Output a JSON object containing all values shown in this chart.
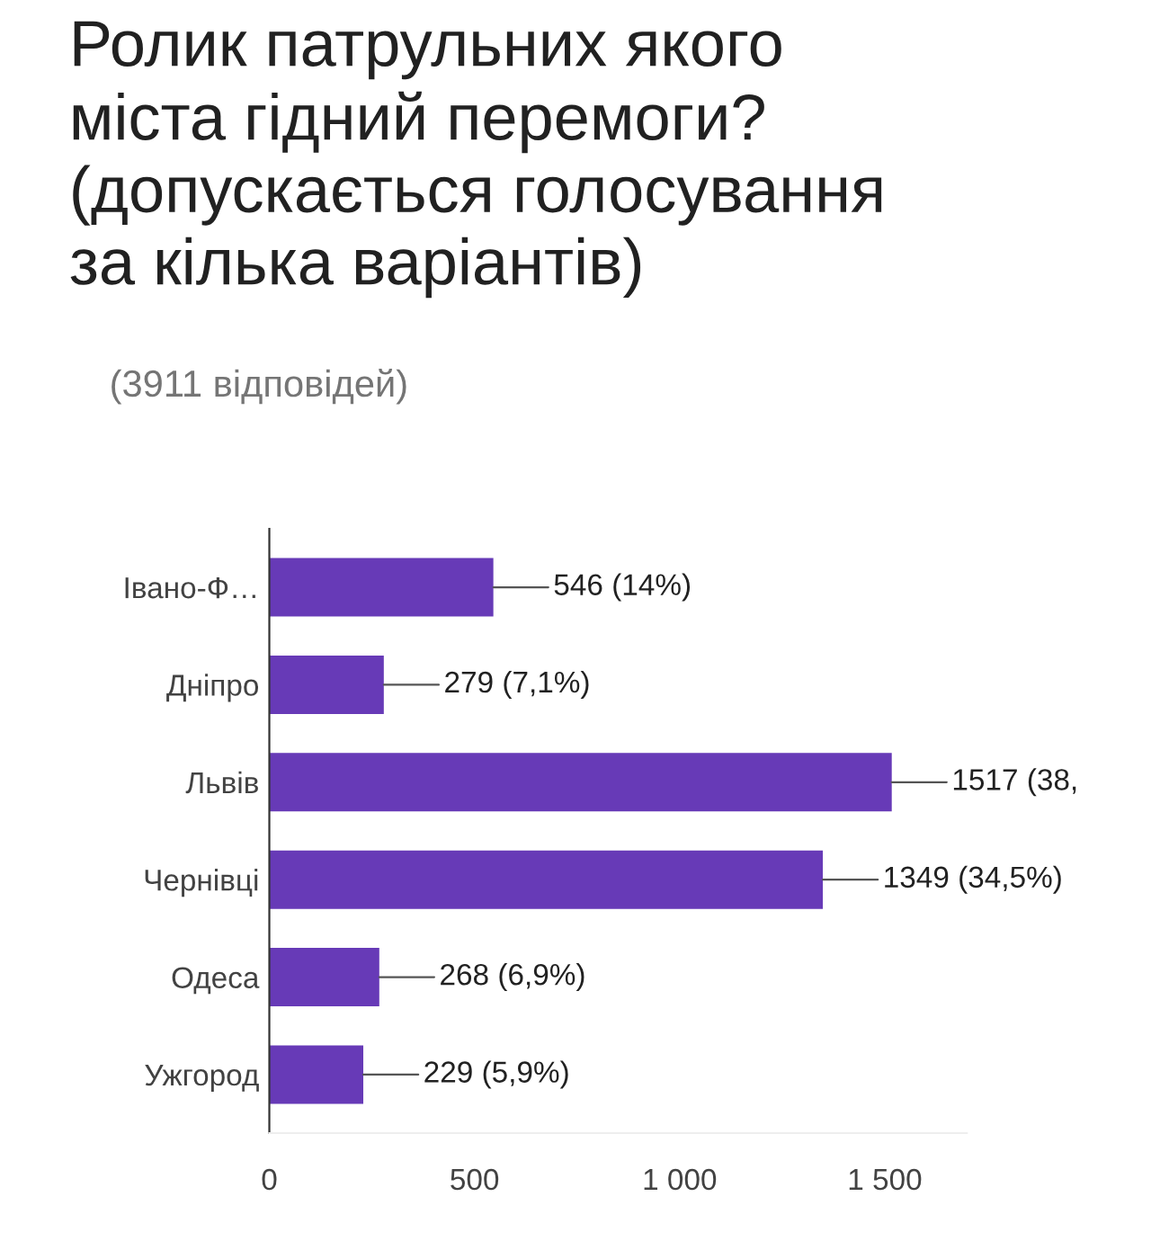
{
  "chart_data": {
    "type": "bar",
    "orientation": "horizontal",
    "title": "Ролик патрульних якого\nміста гідний перемоги?\n(допускається голосування\nза кілька варіантів)",
    "subtitle": "(3911 відповідей)",
    "categories": [
      "Івано-Ф…",
      "Дніпро",
      "Львів",
      "Чернівці",
      "Одеса",
      "Ужгород"
    ],
    "values": [
      546,
      279,
      1517,
      1349,
      268,
      229
    ],
    "value_labels": [
      "546 (14%)",
      "279 (7,1%)",
      "1517 (38,",
      "1349 (34,5%)",
      "268 (6,9%)",
      "229 (5,9%)"
    ],
    "color": "#673ab7",
    "xlim": [
      0,
      1700
    ],
    "xticks": [
      0,
      500,
      {
        "value": 1000,
        "label": "1 000"
      },
      {
        "value": 1500,
        "label": "1 500"
      }
    ],
    "grid": false,
    "legend": false
  }
}
